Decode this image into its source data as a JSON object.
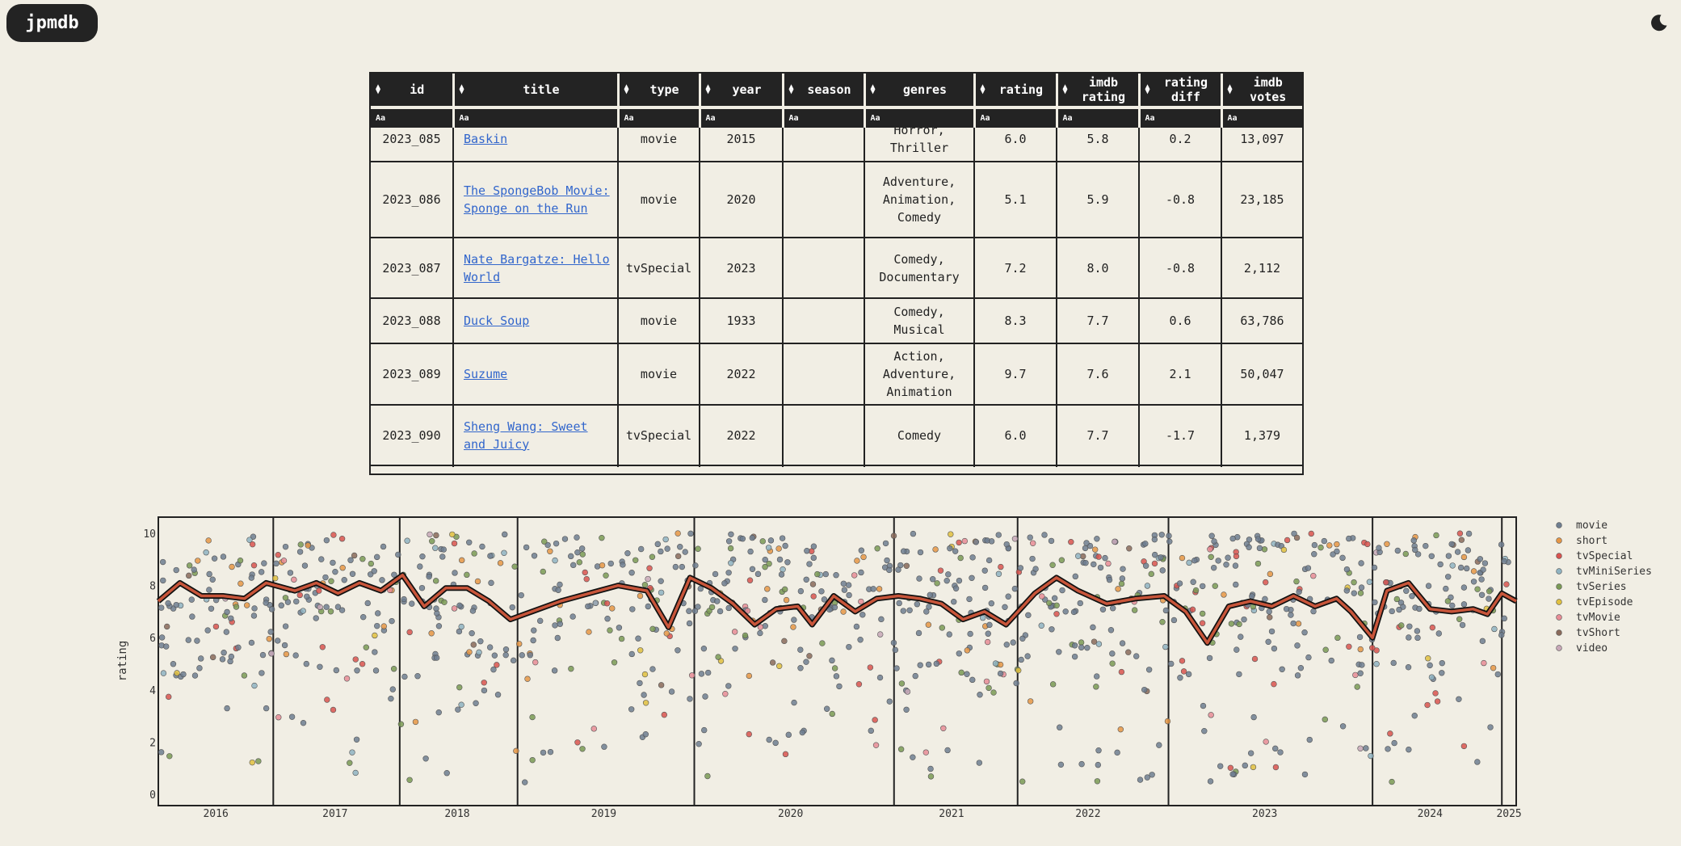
{
  "app": {
    "logo": "jpmdb",
    "theme_icon": "moon-icon"
  },
  "table": {
    "columns": [
      {
        "label": "id"
      },
      {
        "label": "title"
      },
      {
        "label": "type"
      },
      {
        "label": "year"
      },
      {
        "label": "season"
      },
      {
        "label": "genres"
      },
      {
        "label": "rating"
      },
      {
        "label": "imdb\nrating"
      },
      {
        "label": "rating\ndiff"
      },
      {
        "label": "imdb\nvotes"
      }
    ],
    "filter_placeholder": "Aa",
    "rows": [
      {
        "id": "2023_085",
        "title": "Baskin",
        "type": "movie",
        "year": "2015",
        "season": "",
        "genres": "Horror,\nThriller",
        "rating": "6.0",
        "imdb_rating": "5.8",
        "rating_diff": "0.2",
        "imdb_votes": "13,097"
      },
      {
        "id": "2023_086",
        "title": "The SpongeBob Movie: Sponge on the Run",
        "type": "movie",
        "year": "2020",
        "season": "",
        "genres": "Adventure,\nAnimation,\nComedy",
        "rating": "5.1",
        "imdb_rating": "5.9",
        "rating_diff": "-0.8",
        "imdb_votes": "23,185"
      },
      {
        "id": "2023_087",
        "title": "Nate Bargatze: Hello World",
        "type": "tvSpecial",
        "year": "2023",
        "season": "",
        "genres": "Comedy,\nDocumentary",
        "rating": "7.2",
        "imdb_rating": "8.0",
        "rating_diff": "-0.8",
        "imdb_votes": "2,112"
      },
      {
        "id": "2023_088",
        "title": "Duck Soup",
        "type": "movie",
        "year": "1933",
        "season": "",
        "genres": "Comedy,\nMusical",
        "rating": "8.3",
        "imdb_rating": "7.7",
        "rating_diff": "0.6",
        "imdb_votes": "63,786"
      },
      {
        "id": "2023_089",
        "title": "Suzume",
        "type": "movie",
        "year": "2022",
        "season": "",
        "genres": "Action,\nAdventure,\nAnimation",
        "rating": "9.7",
        "imdb_rating": "7.6",
        "rating_diff": "2.1",
        "imdb_votes": "50,047"
      },
      {
        "id": "2023_090",
        "title": "Sheng Wang: Sweet and Juicy",
        "type": "tvSpecial",
        "year": "2022",
        "season": "",
        "genres": "Comedy",
        "rating": "6.0",
        "imdb_rating": "7.7",
        "rating_diff": "-1.7",
        "imdb_votes": "1,379"
      }
    ]
  },
  "chart_data": {
    "type": "scatter",
    "ylabel": "rating",
    "xlabel": "",
    "ylim": [
      0,
      10
    ],
    "xlim": [
      2015.6,
      2025.05
    ],
    "y_ticks": [
      0,
      2,
      4,
      6,
      8,
      10
    ],
    "x_ticks": [
      "2016",
      "2017",
      "2018",
      "2019",
      "2020",
      "2021",
      "2022",
      "2023",
      "2024",
      "2025"
    ],
    "x_tick_positions": [
      2016.0,
      2016.83,
      2017.68,
      2018.7,
      2020.0,
      2021.12,
      2022.07,
      2023.3,
      2024.45,
      2025.0
    ],
    "year_boundaries": [
      2016.4,
      2017.28,
      2018.1,
      2019.33,
      2020.72,
      2021.58,
      2022.63,
      2024.05,
      2024.95
    ],
    "legend": [
      {
        "name": "movie",
        "color": "#6f7e90"
      },
      {
        "name": "short",
        "color": "#e69645"
      },
      {
        "name": "tvSpecial",
        "color": "#d9534f"
      },
      {
        "name": "tvMiniSeries",
        "color": "#8fb3c2"
      },
      {
        "name": "tvSeries",
        "color": "#7a9a55"
      },
      {
        "name": "tvEpisode",
        "color": "#e0c040"
      },
      {
        "name": "tvMovie",
        "color": "#e88c96"
      },
      {
        "name": "tvShort",
        "color": "#8a6a5a"
      },
      {
        "name": "video",
        "color": "#c8a8b8"
      }
    ],
    "trend_color": "#c8553a",
    "trend_points": [
      [
        2015.6,
        7.4
      ],
      [
        2015.75,
        8.1
      ],
      [
        2015.9,
        7.6
      ],
      [
        2016.05,
        7.6
      ],
      [
        2016.2,
        7.5
      ],
      [
        2016.35,
        8.1
      ],
      [
        2016.55,
        7.8
      ],
      [
        2016.7,
        8.1
      ],
      [
        2016.85,
        7.7
      ],
      [
        2017.0,
        8.1
      ],
      [
        2017.15,
        7.8
      ],
      [
        2017.3,
        8.4
      ],
      [
        2017.45,
        7.2
      ],
      [
        2017.6,
        7.9
      ],
      [
        2017.75,
        7.9
      ],
      [
        2017.9,
        7.4
      ],
      [
        2018.05,
        6.7
      ],
      [
        2018.2,
        7.0
      ],
      [
        2018.4,
        7.4
      ],
      [
        2018.6,
        7.7
      ],
      [
        2018.8,
        8.0
      ],
      [
        2019.0,
        7.8
      ],
      [
        2019.15,
        6.4
      ],
      [
        2019.3,
        8.3
      ],
      [
        2019.45,
        7.9
      ],
      [
        2019.6,
        7.3
      ],
      [
        2019.75,
        6.5
      ],
      [
        2019.9,
        7.1
      ],
      [
        2020.05,
        7.2
      ],
      [
        2020.15,
        6.5
      ],
      [
        2020.3,
        7.6
      ],
      [
        2020.45,
        7.0
      ],
      [
        2020.6,
        7.5
      ],
      [
        2020.75,
        7.6
      ],
      [
        2020.9,
        7.5
      ],
      [
        2021.05,
        7.3
      ],
      [
        2021.2,
        6.7
      ],
      [
        2021.35,
        7.0
      ],
      [
        2021.5,
        6.5
      ],
      [
        2021.7,
        7.7
      ],
      [
        2021.85,
        8.3
      ],
      [
        2022.0,
        7.8
      ],
      [
        2022.2,
        7.3
      ],
      [
        2022.4,
        7.5
      ],
      [
        2022.6,
        7.6
      ],
      [
        2022.75,
        7.0
      ],
      [
        2022.9,
        5.8
      ],
      [
        2023.05,
        7.2
      ],
      [
        2023.2,
        7.4
      ],
      [
        2023.35,
        7.2
      ],
      [
        2023.5,
        7.6
      ],
      [
        2023.65,
        7.2
      ],
      [
        2023.8,
        7.5
      ],
      [
        2023.9,
        7.0
      ],
      [
        2024.05,
        6.0
      ],
      [
        2024.15,
        7.8
      ],
      [
        2024.3,
        8.1
      ],
      [
        2024.45,
        7.1
      ],
      [
        2024.6,
        7.0
      ],
      [
        2024.75,
        7.1
      ],
      [
        2024.85,
        6.9
      ],
      [
        2024.95,
        7.7
      ],
      [
        2025.05,
        7.4
      ]
    ]
  }
}
